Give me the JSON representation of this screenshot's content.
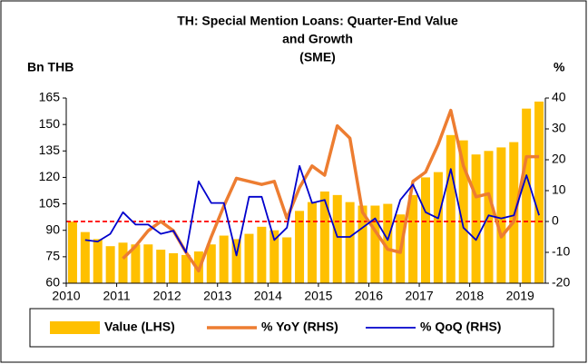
{
  "chart_data": {
    "type": "bar_line_combo",
    "title": [
      "TH: Special Mention Loans: Quarter-End Value",
      "and Growth",
      "(SME)"
    ],
    "y_label": "Bn THB",
    "y2_label": "%",
    "categories": [
      "2010",
      null,
      null,
      null,
      "2011",
      null,
      null,
      null,
      "2012",
      null,
      null,
      null,
      "2013",
      null,
      null,
      null,
      "2014",
      null,
      null,
      null,
      "2015",
      null,
      null,
      null,
      "2016",
      null,
      null,
      null,
      "2017",
      null,
      null,
      null,
      "2018",
      null,
      null,
      null,
      "2019",
      null
    ],
    "series": [
      {
        "name": "Value (LHS)",
        "kind": "bar",
        "color": "#ffc000",
        "values": [
          95,
          89,
          85,
          81,
          83,
          82,
          82,
          79,
          77,
          76,
          78,
          82,
          87,
          85,
          88,
          92,
          90,
          86,
          101,
          106,
          112,
          110,
          106,
          104,
          104,
          105,
          99,
          110,
          120,
          123,
          144,
          141,
          133,
          135,
          137,
          140,
          159,
          163
        ]
      },
      {
        "name": "% YoY (RHS)",
        "kind": "line",
        "axis": "y2",
        "color": "#ed7d31",
        "width": 3.5,
        "values": [
          null,
          null,
          null,
          null,
          -12,
          -8,
          -3,
          0,
          -3,
          -10,
          -16,
          -5,
          5,
          14,
          13,
          12,
          13,
          1,
          11,
          18,
          15,
          31,
          27,
          3,
          -3,
          -9,
          -10,
          13,
          16,
          25,
          36,
          18,
          8,
          9,
          -5,
          0,
          21,
          21
        ]
      },
      {
        "name": "% QoQ (RHS)",
        "kind": "line",
        "axis": "y2",
        "color": "#0000cc",
        "width": 1.8,
        "values": [
          null,
          -6,
          -6.5,
          -4,
          3,
          -1,
          -1,
          -4,
          -3,
          -10,
          13,
          6,
          6,
          -11,
          8,
          8,
          -6,
          -2,
          18,
          6,
          7,
          -5,
          -5,
          -2,
          1,
          -6,
          7,
          12,
          3,
          1,
          17,
          -2,
          -6,
          2,
          1,
          2,
          15,
          2
        ]
      }
    ],
    "ylim": [
      60,
      165
    ],
    "yticks": [
      60,
      75,
      90,
      105,
      120,
      135,
      150,
      165
    ],
    "y2lim": [
      -20,
      40
    ],
    "y2ticks": [
      -20,
      -10,
      0,
      10,
      20,
      30,
      40
    ],
    "reference_line": {
      "axis": "y2",
      "value": 0,
      "color": "#ff0000"
    },
    "legend": "bottom"
  }
}
